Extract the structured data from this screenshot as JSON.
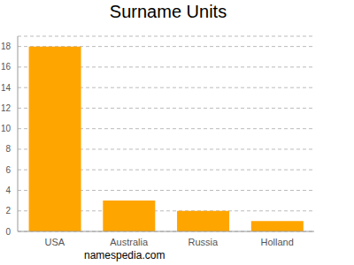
{
  "chart_data": {
    "type": "bar",
    "title": "Surname Units",
    "categories": [
      "USA",
      "Australia",
      "Russia",
      "Holland"
    ],
    "values": [
      18,
      3,
      2,
      1
    ],
    "color": "#ffa500",
    "ylim": [
      0,
      19
    ],
    "yticks": [
      0,
      2,
      4,
      6,
      8,
      10,
      12,
      14,
      16,
      18
    ],
    "grid": true,
    "annotations": [
      "namespedia.com"
    ]
  }
}
